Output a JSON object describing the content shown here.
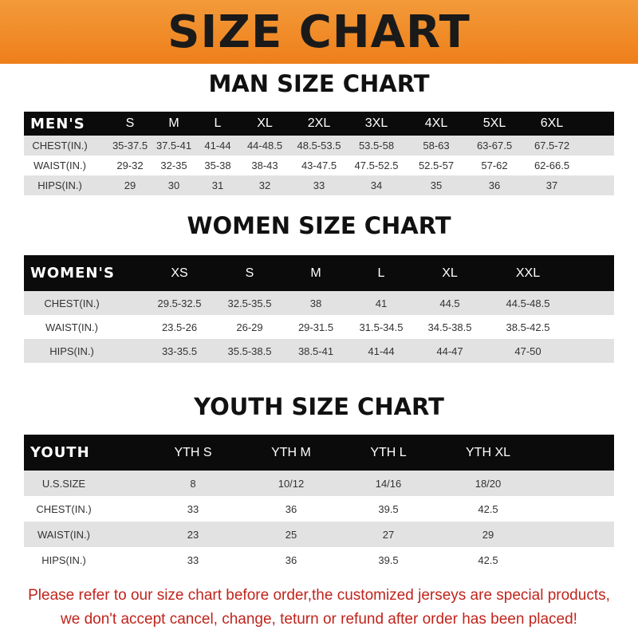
{
  "banner_title": "SIZE CHART",
  "men": {
    "title": "MAN SIZE CHART",
    "header": [
      "MEN'S",
      "S",
      "M",
      "L",
      "XL",
      "2XL",
      "3XL",
      "4XL",
      "5XL",
      "6XL"
    ],
    "rows": [
      [
        "CHEST(IN.)",
        "35-37.5",
        "37.5-41",
        "41-44",
        "44-48.5",
        "48.5-53.5",
        "53.5-58",
        "58-63",
        "63-67.5",
        "67.5-72"
      ],
      [
        "WAIST(IN.)",
        "29-32",
        "32-35",
        "35-38",
        "38-43",
        "43-47.5",
        "47.5-52.5",
        "52.5-57",
        "57-62",
        "62-66.5"
      ],
      [
        "HIPS(IN.)",
        "29",
        "30",
        "31",
        "32",
        "33",
        "34",
        "35",
        "36",
        "37"
      ]
    ]
  },
  "women": {
    "title": "WOMEN SIZE CHART",
    "header": [
      "WOMEN'S",
      "XS",
      "S",
      "M",
      "L",
      "XL",
      "XXL"
    ],
    "rows": [
      [
        "CHEST(IN.)",
        "29.5-32.5",
        "32.5-35.5",
        "38",
        "41",
        "44.5",
        "44.5-48.5"
      ],
      [
        "WAIST(IN.)",
        "23.5-26",
        "26-29",
        "29-31.5",
        "31.5-34.5",
        "34.5-38.5",
        "38.5-42.5"
      ],
      [
        "HIPS(IN.)",
        "33-35.5",
        "35.5-38.5",
        "38.5-41",
        "41-44",
        "44-47",
        "47-50"
      ]
    ]
  },
  "youth": {
    "title": "YOUTH SIZE CHART",
    "header": [
      "YOUTH",
      "YTH S",
      "YTH M",
      "YTH L",
      "YTH XL"
    ],
    "rows": [
      [
        "U.S.SIZE",
        "8",
        "10/12",
        "14/16",
        "18/20"
      ],
      [
        "CHEST(IN.)",
        "33",
        "36",
        "39.5",
        "42.5"
      ],
      [
        "WAIST(IN.)",
        "23",
        "25",
        "27",
        "29"
      ],
      [
        "HIPS(IN.)",
        "33",
        "36",
        "39.5",
        "42.5"
      ]
    ]
  },
  "notice": [
    "Please refer to our size chart before order,the customized jerseys are special products,",
    "we don't accept cancel, change, teturn or refund after order has been placed!"
  ],
  "colors": {
    "banner": "#ee7f1a",
    "header_row": "#0b0b0b",
    "stripe": "#e2e2e2",
    "notice": "#c0241c"
  }
}
